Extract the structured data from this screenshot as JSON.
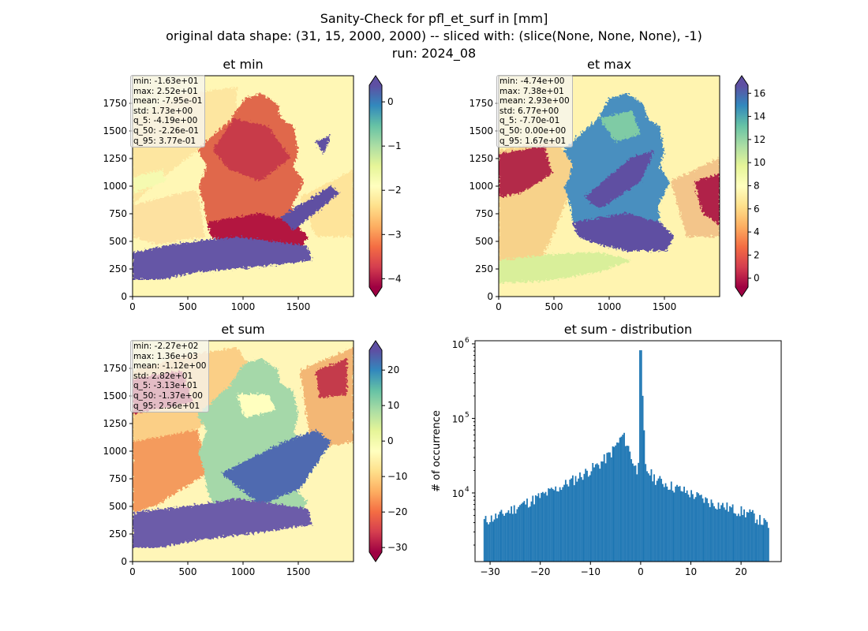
{
  "figure": {
    "title_lines": [
      "Sanity-Check for pfl_et_surf in [mm]",
      "original data shape: (31, 15, 2000, 2000) -- sliced with: (slice(None, None, None), -1)",
      "run: 2024_08"
    ]
  },
  "colors": {
    "spectral": [
      "#9e0142",
      "#d53e4f",
      "#f46d43",
      "#fdae61",
      "#fee08b",
      "#ffffbf",
      "#e6f598",
      "#abdda4",
      "#66c2a5",
      "#3288bd",
      "#5e4fa2"
    ],
    "hist_bar": "#1f77b4"
  },
  "chart_data": [
    {
      "type": "heatmap",
      "title": "et min",
      "stats": [
        "min: -1.63e+01",
        "max: 2.52e+01",
        "mean: -7.95e-01",
        "std: 1.73e+00",
        "q_5: -4.19e+00",
        "q_50: -2.26e-01",
        "q_95: 3.77e-01"
      ],
      "xticks": [
        "0",
        "500",
        "1000",
        "1500"
      ],
      "yticks": [
        "0",
        "250",
        "500",
        "750",
        "1000",
        "1250",
        "1500",
        "1750"
      ],
      "xlim": [
        0,
        2000
      ],
      "ylim": [
        0,
        2000
      ],
      "colorbar": {
        "range": [
          -4.19,
          0.377
        ],
        "ticks": [
          0,
          -1,
          -2,
          -3,
          -4
        ],
        "tick_labels": [
          "0",
          "−1",
          "−2",
          "−3",
          "−4"
        ]
      }
    },
    {
      "type": "heatmap",
      "title": "et max",
      "stats": [
        "min: -4.74e+00",
        "max: 7.38e+01",
        "mean: 2.93e+00",
        "std: 6.77e+00",
        "q_5: -7.70e-01",
        "q_50: 0.00e+00",
        "q_95: 1.67e+01"
      ],
      "xticks": [
        "0",
        "500",
        "1000",
        "1500"
      ],
      "yticks": [
        "0",
        "250",
        "500",
        "750",
        "1000",
        "1250",
        "1500",
        "1750"
      ],
      "xlim": [
        0,
        2000
      ],
      "ylim": [
        0,
        2000
      ],
      "colorbar": {
        "range": [
          -0.77,
          16.7
        ],
        "ticks": [
          16,
          14,
          12,
          10,
          8,
          6,
          4,
          2,
          0
        ],
        "tick_labels": [
          "16",
          "14",
          "12",
          "10",
          "8",
          "6",
          "4",
          "2",
          "0"
        ]
      }
    },
    {
      "type": "heatmap",
      "title": "et sum",
      "stats": [
        "min: -2.27e+02",
        "max: 1.36e+03",
        "mean: -1.12e+00",
        "std: 2.82e+01",
        "q_5: -3.13e+01",
        "q_50: -1.37e+00",
        "q_95: 2.56e+01"
      ],
      "xticks": [
        "0",
        "500",
        "1000",
        "1500"
      ],
      "yticks": [
        "0",
        "250",
        "500",
        "750",
        "1000",
        "1250",
        "1500",
        "1750"
      ],
      "xlim": [
        0,
        2000
      ],
      "ylim": [
        0,
        2000
      ],
      "colorbar": {
        "range": [
          -31.3,
          25.6
        ],
        "ticks": [
          20,
          10,
          0,
          -10,
          -20,
          -30
        ],
        "tick_labels": [
          "20",
          "10",
          "0",
          "−10",
          "−20",
          "−30"
        ]
      }
    },
    {
      "type": "bar",
      "title": "et sum - distribution",
      "ylabel": "# of occurrence",
      "yscale": "log",
      "ylim": [
        1200,
        1100000
      ],
      "xlim": [
        -33,
        28
      ],
      "xticks": [
        -30,
        -20,
        -10,
        0,
        10,
        20
      ],
      "xtick_labels": [
        "−30",
        "−20",
        "−10",
        "0",
        "10",
        "20"
      ],
      "ytick_labels": [
        "10",
        "10",
        "10"
      ],
      "ytick_exponents": [
        "4",
        "5",
        "6"
      ],
      "ytick_values": [
        10000,
        100000,
        1000000
      ],
      "bin_range": [
        -31.3,
        25.6
      ],
      "anchors": {
        "x": [
          -31.3,
          -28,
          -24,
          -20,
          -16,
          -12,
          -8,
          -6,
          -4.5,
          -3.5,
          -2.5,
          -1.5,
          -0.5,
          0,
          1,
          3,
          6,
          10,
          14,
          18,
          22,
          25.6
        ],
        "y": [
          4200,
          5000,
          6800,
          9000,
          12000,
          17000,
          25000,
          34000,
          47000,
          60000,
          42000,
          26000,
          18000,
          820000,
          21000,
          15500,
          12500,
          9800,
          7500,
          6200,
          5200,
          3600
        ]
      }
    }
  ]
}
